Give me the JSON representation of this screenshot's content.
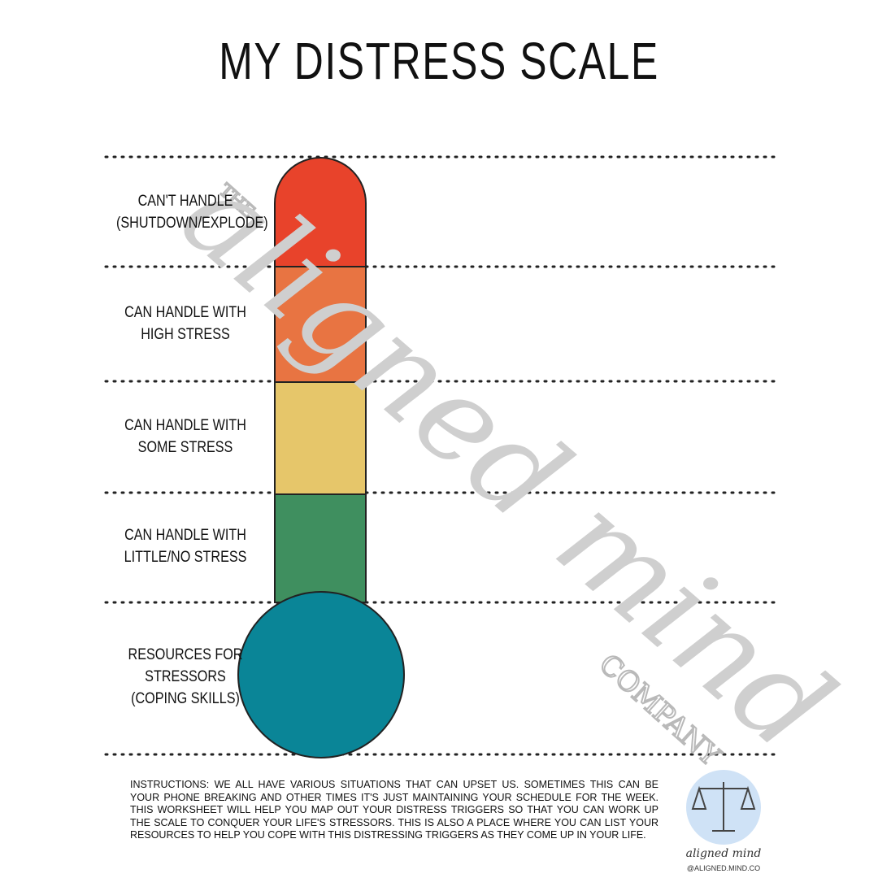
{
  "title": "MY DISTRESS SCALE",
  "levels": [
    {
      "lines": [
        "CAN'T HANDLE",
        "(SHUTDOWN/EXPLODE)"
      ]
    },
    {
      "lines": [
        "CAN HANDLE WITH",
        "HIGH STRESS"
      ]
    },
    {
      "lines": [
        "CAN HANDLE WITH",
        "SOME STRESS"
      ]
    },
    {
      "lines": [
        "CAN HANDLE WITH",
        "LITTLE/NO STRESS"
      ]
    },
    {
      "lines": [
        "RESOURCES FOR",
        "STRESSORS",
        "(COPING SKILLS)"
      ]
    }
  ],
  "instructions": "INSTRUCTIONS: WE ALL HAVE VARIOUS SITUATIONS THAT CAN UPSET US. SOMETIMES THIS CAN BE YOUR PHONE BREAKING AND OTHER TIMES IT'S JUST MAINTAINING YOUR SCHEDULE FOR THE WEEK. THIS WORKSHEET WILL HELP YOU MAP OUT YOUR DISTRESS TRIGGERS SO THAT YOU CAN WORK UP THE SCALE TO CONQUER YOUR LIFE'S STRESSORS. THIS IS ALSO A PLACE WHERE YOU CAN LIST YOUR RESOURCES TO HELP YOU COPE WITH THIS DISTRESSING TRIGGERS AS THEY COME UP IN YOUR LIFE.",
  "watermark": {
    "top": "THE",
    "main": "aligned mind",
    "bottom": "COMPANY"
  },
  "logo": {
    "name": "aligned mind",
    "handle": "@ALIGNED.MIND.CO"
  }
}
